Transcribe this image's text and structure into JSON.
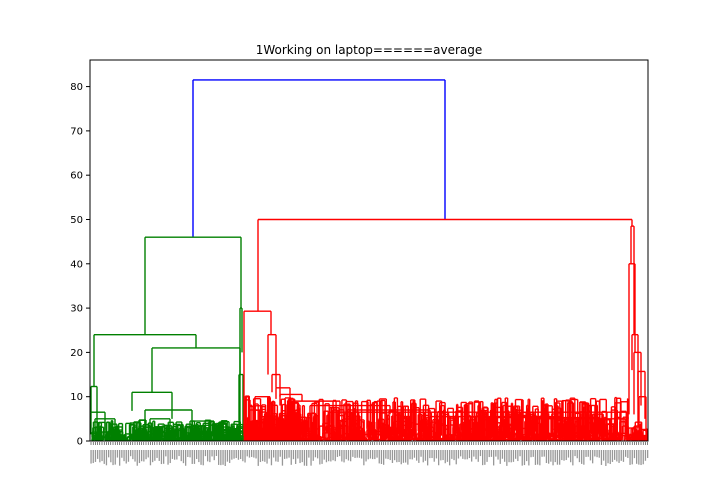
{
  "chart_data": {
    "type": "dendrogram",
    "title": "1Working on laptop======average",
    "xlabel": "",
    "ylabel": "",
    "ylim": [
      0,
      86
    ],
    "yticks": [
      0,
      10,
      20,
      30,
      40,
      50,
      60,
      70,
      80
    ],
    "grid": false,
    "colors": {
      "root": "#0000ff",
      "cluster_left": "#008000",
      "cluster_right": "#ff0000",
      "axes": "#000000"
    },
    "main_merges": [
      {
        "cluster": "root",
        "height": 81.5
      },
      {
        "cluster": "cluster_right",
        "height": 50.0
      },
      {
        "cluster": "cluster_left",
        "height": 46.0
      },
      {
        "cluster": "cluster_right",
        "height": 48.5
      },
      {
        "cluster": "cluster_right",
        "height": 40.0
      },
      {
        "cluster": "cluster_right",
        "height": 29.3
      },
      {
        "cluster": "cluster_left",
        "height": 24.0
      },
      {
        "cluster": "cluster_left",
        "height": 21.0
      },
      {
        "cluster": "cluster_left",
        "height": 11.0
      },
      {
        "cluster": "cluster_left",
        "height": 12.3
      },
      {
        "cluster": "cluster_right",
        "height": 24.0
      },
      {
        "cluster": "cluster_right",
        "height": 20.0
      },
      {
        "cluster": "cluster_right",
        "height": 15.7
      }
    ]
  }
}
